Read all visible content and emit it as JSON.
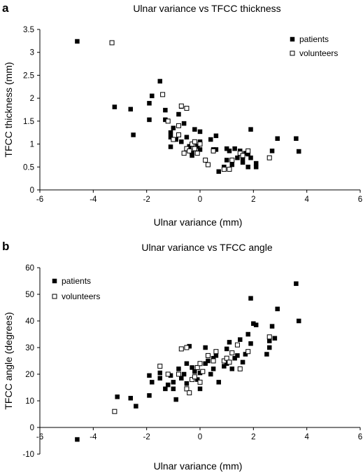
{
  "chart_data": [
    {
      "panel": "a",
      "type": "scatter",
      "title": "Ulnar variance vs TFCC thickness",
      "xlabel": "Ulnar variance (mm)",
      "ylabel": "TFCC thickness (mm)",
      "xlim": [
        -6,
        6
      ],
      "ylim": [
        0,
        3.5
      ],
      "xticks": [
        -6,
        -4,
        -2,
        0,
        2,
        4,
        6
      ],
      "yticks": [
        0,
        0.5,
        1,
        1.5,
        2,
        2.5,
        3,
        3.5
      ],
      "legend_position": "top-right",
      "series": [
        {
          "name": "patients",
          "marker": "filled-square",
          "color": "#000000",
          "points": [
            [
              -4.6,
              3.24
            ],
            [
              -3.2,
              1.81
            ],
            [
              -2.6,
              1.76
            ],
            [
              -2.5,
              1.2
            ],
            [
              -1.9,
              1.89
            ],
            [
              -1.8,
              2.05
            ],
            [
              -1.5,
              2.37
            ],
            [
              -1.9,
              1.53
            ],
            [
              -1.3,
              1.74
            ],
            [
              -1.3,
              1.53
            ],
            [
              -1.1,
              1.25
            ],
            [
              -1.1,
              1.15
            ],
            [
              -1.0,
              1.35
            ],
            [
              -1.1,
              0.94
            ],
            [
              -0.9,
              1.1
            ],
            [
              -0.8,
              1.65
            ],
            [
              -0.7,
              1.82
            ],
            [
              -0.7,
              1.05
            ],
            [
              -0.6,
              1.45
            ],
            [
              -0.5,
              1.15
            ],
            [
              -0.4,
              0.95
            ],
            [
              -0.3,
              0.8
            ],
            [
              -0.3,
              0.75
            ],
            [
              -0.2,
              1.32
            ],
            [
              -0.1,
              0.95
            ],
            [
              0.0,
              1.27
            ],
            [
              0.0,
              1.05
            ],
            [
              0.0,
              0.88
            ],
            [
              0.4,
              1.1
            ],
            [
              0.5,
              0.88
            ],
            [
              0.6,
              1.18
            ],
            [
              0.6,
              0.88
            ],
            [
              0.7,
              0.4
            ],
            [
              0.9,
              0.5
            ],
            [
              1.0,
              0.9
            ],
            [
              1.0,
              0.65
            ],
            [
              1.1,
              0.85
            ],
            [
              1.2,
              0.55
            ],
            [
              1.3,
              0.9
            ],
            [
              1.4,
              0.7
            ],
            [
              1.5,
              0.85
            ],
            [
              1.6,
              0.7
            ],
            [
              1.6,
              0.6
            ],
            [
              1.7,
              0.8
            ],
            [
              1.8,
              0.5
            ],
            [
              1.8,
              0.78
            ],
            [
              1.9,
              0.7
            ],
            [
              1.9,
              1.32
            ],
            [
              2.1,
              0.58
            ],
            [
              2.1,
              0.5
            ],
            [
              2.7,
              0.85
            ],
            [
              2.9,
              1.12
            ],
            [
              3.6,
              1.12
            ],
            [
              3.7,
              0.84
            ]
          ]
        },
        {
          "name": "volunteers",
          "marker": "open-square",
          "color": "#000000",
          "points": [
            [
              -3.3,
              3.21
            ],
            [
              -1.4,
              2.08
            ],
            [
              -1.2,
              1.5
            ],
            [
              -0.8,
              1.4
            ],
            [
              -0.7,
              1.83
            ],
            [
              -0.5,
              1.78
            ],
            [
              -1.0,
              1.1
            ],
            [
              -0.8,
              1.2
            ],
            [
              -0.6,
              0.8
            ],
            [
              -0.5,
              0.9
            ],
            [
              -0.4,
              0.85
            ],
            [
              -0.3,
              1.0
            ],
            [
              -0.2,
              1.05
            ],
            [
              -0.2,
              0.9
            ],
            [
              -0.1,
              0.8
            ],
            [
              0.0,
              1.0
            ],
            [
              0.2,
              0.65
            ],
            [
              0.3,
              0.55
            ],
            [
              0.5,
              0.85
            ],
            [
              0.9,
              0.45
            ],
            [
              1.1,
              0.45
            ],
            [
              1.2,
              0.65
            ],
            [
              1.5,
              0.8
            ],
            [
              1.6,
              0.75
            ],
            [
              1.8,
              0.85
            ],
            [
              2.6,
              0.7
            ]
          ]
        }
      ]
    },
    {
      "panel": "b",
      "type": "scatter",
      "title": "Ulnar variance vs TFCC angle",
      "xlabel": "Ulnar variance (mm)",
      "ylabel": "TFCC angle (degrees)",
      "xlim": [
        -6,
        6
      ],
      "ylim": [
        -10,
        60
      ],
      "xticks": [
        -6,
        -4,
        -2,
        0,
        2,
        4,
        6
      ],
      "yticks": [
        -10,
        0,
        10,
        20,
        30,
        40,
        50,
        60
      ],
      "legend_position": "top-left",
      "series": [
        {
          "name": "patients",
          "marker": "filled-square",
          "color": "#000000",
          "points": [
            [
              -4.6,
              -4.5
            ],
            [
              -3.1,
              11.5
            ],
            [
              -2.6,
              11
            ],
            [
              -2.4,
              8
            ],
            [
              -1.9,
              12
            ],
            [
              -1.9,
              19.5
            ],
            [
              -1.8,
              17
            ],
            [
              -1.5,
              18.5
            ],
            [
              -1.5,
              20.5
            ],
            [
              -1.3,
              14.5
            ],
            [
              -1.2,
              16
            ],
            [
              -1.1,
              19.5
            ],
            [
              -1.0,
              17
            ],
            [
              -1.0,
              14.5
            ],
            [
              -0.9,
              10.5
            ],
            [
              -0.8,
              22
            ],
            [
              -0.7,
              18.5
            ],
            [
              -0.6,
              20
            ],
            [
              -0.5,
              16.5
            ],
            [
              -0.5,
              24
            ],
            [
              -0.4,
              30.5
            ],
            [
              -0.3,
              22.5
            ],
            [
              -0.2,
              21
            ],
            [
              -0.1,
              18
            ],
            [
              0.0,
              14.5
            ],
            [
              0.0,
              20.5
            ],
            [
              0.1,
              21
            ],
            [
              0.2,
              24
            ],
            [
              0.2,
              30
            ],
            [
              0.3,
              25
            ],
            [
              0.4,
              20
            ],
            [
              0.5,
              22
            ],
            [
              0.5,
              26
            ],
            [
              0.6,
              27
            ],
            [
              0.7,
              17
            ],
            [
              0.9,
              23
            ],
            [
              1.0,
              29.5
            ],
            [
              1.0,
              24
            ],
            [
              1.1,
              32
            ],
            [
              1.2,
              22
            ],
            [
              1.3,
              26
            ],
            [
              1.4,
              27
            ],
            [
              1.5,
              33
            ],
            [
              1.6,
              24.5
            ],
            [
              1.7,
              27.5
            ],
            [
              1.8,
              35
            ],
            [
              1.9,
              31.5
            ],
            [
              1.9,
              48.5
            ],
            [
              2.0,
              39
            ],
            [
              2.1,
              38.5
            ],
            [
              2.5,
              27.5
            ],
            [
              2.6,
              32.5
            ],
            [
              2.6,
              30
            ],
            [
              2.7,
              38
            ],
            [
              2.8,
              33.5
            ],
            [
              2.9,
              44.5
            ],
            [
              3.6,
              54
            ],
            [
              3.7,
              40
            ]
          ]
        },
        {
          "name": "volunteers",
          "marker": "open-square",
          "color": "#000000",
          "points": [
            [
              -3.2,
              6
            ],
            [
              -1.5,
              23
            ],
            [
              -1.2,
              20
            ],
            [
              -0.8,
              20
            ],
            [
              -0.7,
              29.5
            ],
            [
              -0.5,
              30
            ],
            [
              -0.5,
              14.5
            ],
            [
              -0.4,
              13
            ],
            [
              -0.3,
              18
            ],
            [
              -0.2,
              19
            ],
            [
              -0.1,
              22.5
            ],
            [
              0.0,
              17
            ],
            [
              0.0,
              24
            ],
            [
              0.1,
              21
            ],
            [
              0.3,
              27
            ],
            [
              0.5,
              25
            ],
            [
              0.6,
              28.5
            ],
            [
              0.9,
              25
            ],
            [
              1.0,
              26
            ],
            [
              1.1,
              24.5
            ],
            [
              1.2,
              28
            ],
            [
              1.4,
              31
            ],
            [
              1.5,
              22
            ],
            [
              1.8,
              28.5
            ],
            [
              2.6,
              34
            ]
          ]
        }
      ]
    }
  ]
}
